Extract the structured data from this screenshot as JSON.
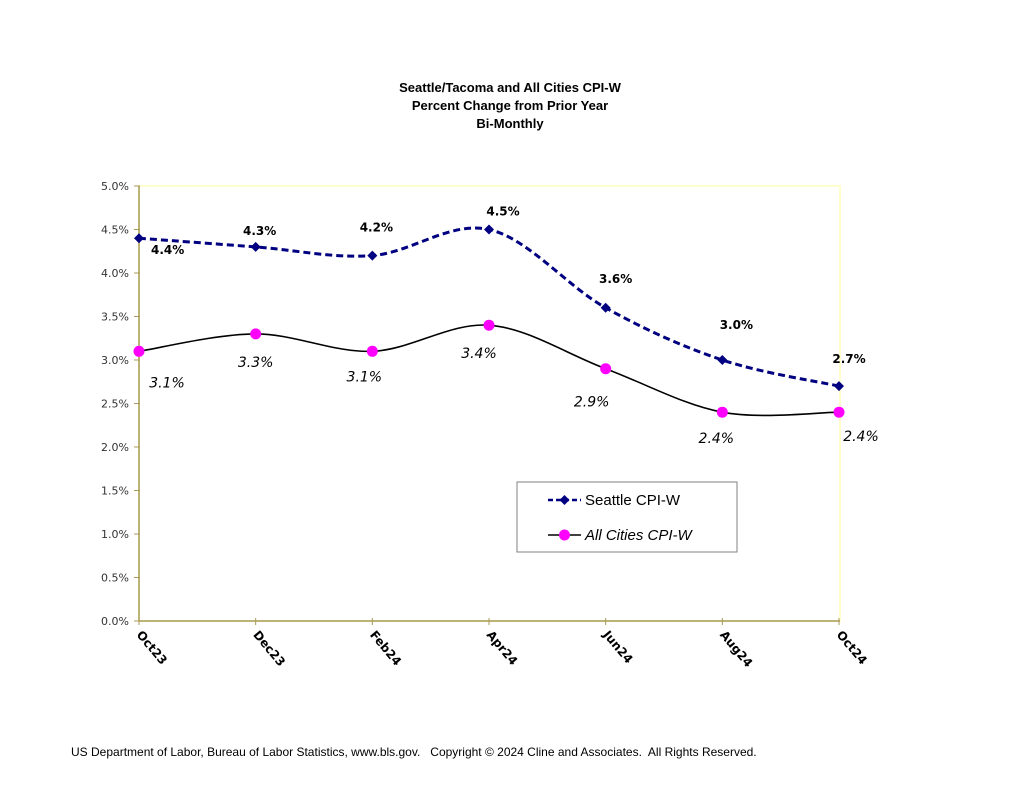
{
  "chart_data": {
    "type": "line",
    "title": [
      "Seattle/Tacoma and All Cities CPI-W",
      "Percent Change from Prior Year",
      "Bi-Monthly"
    ],
    "xlabel": "",
    "ylabel": "",
    "categories": [
      "Oct23",
      "Dec23",
      "Feb24",
      "Apr24",
      "Jun24",
      "Aug24",
      "Oct24"
    ],
    "ylim": [
      0,
      5
    ],
    "yticks": [
      0,
      0.5,
      1,
      1.5,
      2,
      2.5,
      3,
      3.5,
      4,
      4.5,
      5
    ],
    "ytick_labels": [
      "0.0%",
      "0.5%",
      "1.0%",
      "1.5%",
      "2.0%",
      "2.5%",
      "3.0%",
      "3.5%",
      "4.0%",
      "4.5%",
      "5.0%"
    ],
    "grid": false,
    "legend_position": "lower-right",
    "series": [
      {
        "name": "Seattle CPI-W",
        "values": [
          4.4,
          4.3,
          4.2,
          4.5,
          3.6,
          3.0,
          2.7
        ],
        "labels": [
          "4.4%",
          "4.3%",
          "4.2%",
          "4.5%",
          "3.6%",
          "3.0%",
          "2.7%"
        ],
        "color": "#000080",
        "marker": "diamond",
        "line_style": "dashed",
        "smoothed": true
      },
      {
        "name": "All Cities CPI-W",
        "values": [
          3.1,
          3.3,
          3.1,
          3.4,
          2.9,
          2.4,
          2.4
        ],
        "labels": [
          "3.1%",
          "3.3%",
          "3.1%",
          "3.4%",
          "2.9%",
          "2.4%",
          "2.4%"
        ],
        "color": "#000000",
        "marker_color": "#ff00ff",
        "marker": "circle",
        "line_style": "solid",
        "smoothed": true
      }
    ]
  },
  "colors": {
    "axis": "#a89a5a",
    "plot_border": "#ffffcc"
  },
  "footer": "US Department of Labor, Bureau of Labor Statistics, www.bls.gov.   Copyright © 2024 Cline and Associates.  All Rights Reserved."
}
